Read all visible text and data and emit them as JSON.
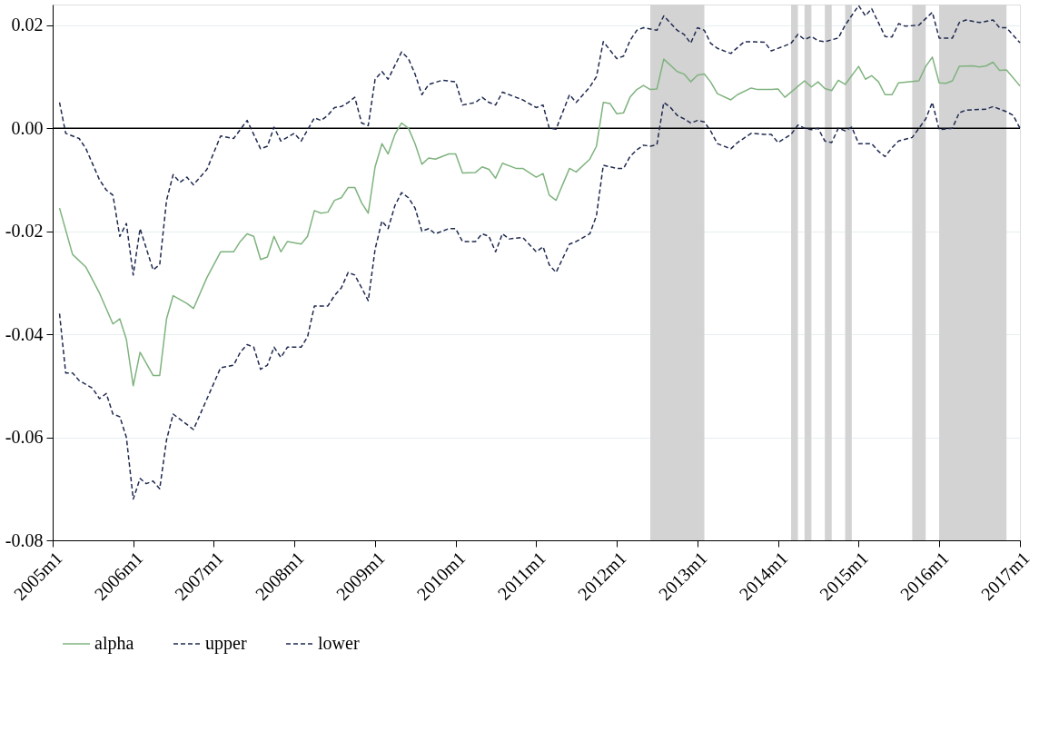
{
  "chart_data": {
    "type": "line",
    "xlim": [
      "2005-01",
      "2017-01"
    ],
    "xticks": [
      {
        "value": "2005-01",
        "label": "2005m1"
      },
      {
        "value": "2006-01",
        "label": "2006m1"
      },
      {
        "value": "2007-01",
        "label": "2007m1"
      },
      {
        "value": "2008-01",
        "label": "2008m1"
      },
      {
        "value": "2009-01",
        "label": "2009m1"
      },
      {
        "value": "2010-01",
        "label": "2010m1"
      },
      {
        "value": "2011-01",
        "label": "2011m1"
      },
      {
        "value": "2012-01",
        "label": "2012m1"
      },
      {
        "value": "2013-01",
        "label": "2013m1"
      },
      {
        "value": "2014-01",
        "label": "2014m1"
      },
      {
        "value": "2015-01",
        "label": "2015m1"
      },
      {
        "value": "2016-01",
        "label": "2016m1"
      },
      {
        "value": "2017-01",
        "label": "2017m1"
      }
    ],
    "ylim": [
      -0.08,
      0.024
    ],
    "yticks": [
      -0.08,
      -0.06,
      -0.04,
      -0.02,
      {
        "value": 0,
        "label": "0.00"
      },
      0.02
    ],
    "grid": "y",
    "legend": "bottom",
    "series": [
      {
        "name": "alpha",
        "color": "#7fb37e",
        "line_style": "solid",
        "x": [
          "2005-02",
          "2005-04",
          "2005-06",
          "2005-08",
          "2005-10",
          "2005-11",
          "2005-12",
          "2006-01",
          "2006-02",
          "2006-04",
          "2006-05",
          "2006-06",
          "2006-07",
          "2006-09",
          "2006-10",
          "2006-12",
          "2007-02",
          "2007-04",
          "2007-05",
          "2007-06",
          "2007-07",
          "2007-08",
          "2007-09",
          "2007-10",
          "2007-11",
          "2007-12",
          "2008-02",
          "2008-03",
          "2008-04",
          "2008-05",
          "2008-06",
          "2008-07",
          "2008-08",
          "2008-09",
          "2008-10",
          "2008-11",
          "2008-12",
          "2009-01",
          "2009-02",
          "2009-03",
          "2009-04",
          "2009-05",
          "2009-06",
          "2009-07",
          "2009-08",
          "2009-09",
          "2009-10",
          "2009-12",
          "2010-01",
          "2010-02",
          "2010-04",
          "2010-05",
          "2010-06",
          "2010-07",
          "2010-08",
          "2010-10",
          "2010-11",
          "2011-01",
          "2011-02",
          "2011-03",
          "2011-04",
          "2011-06",
          "2011-07",
          "2011-09",
          "2011-10",
          "2011-11",
          "2011-12",
          "2012-01",
          "2012-02",
          "2012-03",
          "2012-04",
          "2012-05",
          "2012-06",
          "2012-07",
          "2012-08",
          "2012-10",
          "2012-11",
          "2012-12",
          "2013-01",
          "2013-02",
          "2013-03",
          "2013-04",
          "2013-06",
          "2013-07",
          "2013-09",
          "2013-10",
          "2013-12",
          "2014-01",
          "2014-02",
          "2014-03",
          "2014-05",
          "2014-06",
          "2014-07",
          "2014-08",
          "2014-09",
          "2014-10",
          "2014-11",
          "2015-01",
          "2015-02",
          "2015-03",
          "2015-04",
          "2015-05",
          "2015-06",
          "2015-07",
          "2015-10",
          "2015-11",
          "2015-12",
          "2016-01",
          "2016-02",
          "2016-03",
          "2016-04",
          "2016-06",
          "2016-07",
          "2016-08",
          "2016-09",
          "2016-10",
          "2016-11",
          "2017-01"
        ],
        "values": [
          -0.0155,
          -0.0245,
          -0.027,
          -0.032,
          -0.038,
          -0.037,
          -0.041,
          -0.05,
          -0.0435,
          -0.048,
          -0.048,
          -0.037,
          -0.0325,
          -0.034,
          -0.035,
          -0.029,
          -0.024,
          -0.024,
          -0.022,
          -0.0205,
          -0.021,
          -0.0255,
          -0.025,
          -0.021,
          -0.024,
          -0.022,
          -0.0225,
          -0.021,
          -0.016,
          -0.0165,
          -0.0163,
          -0.014,
          -0.0135,
          -0.0115,
          -0.0115,
          -0.0145,
          -0.0165,
          -0.0075,
          -0.003,
          -0.005,
          -0.0012,
          0.001,
          0.0,
          -0.003,
          -0.007,
          -0.0058,
          -0.006,
          -0.005,
          -0.005,
          -0.0087,
          -0.0086,
          -0.0075,
          -0.008,
          -0.0097,
          -0.0068,
          -0.0078,
          -0.0078,
          -0.0095,
          -0.0088,
          -0.013,
          -0.014,
          -0.0078,
          -0.0085,
          -0.006,
          -0.0035,
          0.005,
          0.0048,
          0.0028,
          0.003,
          0.006,
          0.0075,
          0.0083,
          0.0075,
          0.0076,
          0.0134,
          0.011,
          0.0105,
          0.009,
          0.0103,
          0.0105,
          0.009,
          0.0067,
          0.0055,
          0.0065,
          0.0078,
          0.0075,
          0.0075,
          0.0076,
          0.006,
          0.007,
          0.0092,
          0.008,
          0.009,
          0.0077,
          0.0073,
          0.0093,
          0.0085,
          0.012,
          0.0095,
          0.0102,
          0.009,
          0.0065,
          0.0065,
          0.0088,
          0.0092,
          0.012,
          0.0138,
          0.0088,
          0.0087,
          0.0092,
          0.012,
          0.0121,
          0.0119,
          0.0121,
          0.0128,
          0.0112,
          0.0113,
          0.0082
        ]
      },
      {
        "name": "upper",
        "color": "#1f2a50",
        "line_style": "dashed",
        "x": [
          "2005-02",
          "2005-03",
          "2005-05",
          "2005-06",
          "2005-08",
          "2005-09",
          "2005-10",
          "2005-11",
          "2005-12",
          "2006-01",
          "2006-02",
          "2006-04",
          "2006-05",
          "2006-06",
          "2006-07",
          "2006-08",
          "2006-09",
          "2006-10",
          "2006-12",
          "2007-02",
          "2007-04",
          "2007-06",
          "2007-08",
          "2007-09",
          "2007-10",
          "2007-11",
          "2008-01",
          "2008-02",
          "2008-04",
          "2008-05",
          "2008-06",
          "2008-07",
          "2008-08",
          "2008-09",
          "2008-10",
          "2008-11",
          "2008-12",
          "2009-01",
          "2009-02",
          "2009-03",
          "2009-05",
          "2009-06",
          "2009-07",
          "2009-08",
          "2009-09",
          "2009-11",
          "2010-01",
          "2010-02",
          "2010-04",
          "2010-05",
          "2010-06",
          "2010-07",
          "2010-08",
          "2010-10",
          "2010-11",
          "2011-01",
          "2011-02",
          "2011-03",
          "2011-04",
          "2011-06",
          "2011-07",
          "2011-09",
          "2011-10",
          "2011-11",
          "2012-01",
          "2012-02",
          "2012-03",
          "2012-04",
          "2012-05",
          "2012-07",
          "2012-08",
          "2012-10",
          "2012-11",
          "2012-12",
          "2013-01",
          "2013-02",
          "2013-03",
          "2013-04",
          "2013-06",
          "2013-08",
          "2013-11",
          "2013-12",
          "2014-02",
          "2014-03",
          "2014-04",
          "2014-05",
          "2014-06",
          "2014-07",
          "2014-08",
          "2014-10",
          "2014-11",
          "2015-01",
          "2015-02",
          "2015-03",
          "2015-05",
          "2015-06",
          "2015-07",
          "2015-08",
          "2015-10",
          "2015-12",
          "2016-01",
          "2016-03",
          "2016-04",
          "2016-05",
          "2016-07",
          "2016-09",
          "2016-10",
          "2016-11",
          "2017-01"
        ],
        "values": [
          0.005,
          -0.001,
          -0.002,
          -0.004,
          -0.01,
          -0.012,
          -0.013,
          -0.021,
          -0.0185,
          -0.0285,
          -0.0195,
          -0.0275,
          -0.0265,
          -0.014,
          -0.009,
          -0.0105,
          -0.0095,
          -0.011,
          -0.008,
          -0.0015,
          -0.002,
          0.0015,
          -0.004,
          -0.0035,
          0.0002,
          -0.0025,
          -0.001,
          -0.0025,
          0.002,
          0.0015,
          0.0025,
          0.004,
          0.0042,
          0.005,
          0.006,
          0.001,
          0.0005,
          0.0095,
          0.011,
          0.0095,
          0.0148,
          0.0135,
          0.0105,
          0.0065,
          0.0085,
          0.0093,
          0.009,
          0.0045,
          0.005,
          0.006,
          0.005,
          0.0045,
          0.007,
          0.006,
          0.0055,
          0.004,
          0.0045,
          0.0,
          -0.0002,
          0.0065,
          0.005,
          0.008,
          0.01,
          0.0168,
          0.0135,
          0.014,
          0.017,
          0.019,
          0.0195,
          0.019,
          0.0218,
          0.019,
          0.0182,
          0.0165,
          0.0195,
          0.019,
          0.0165,
          0.0155,
          0.0145,
          0.0168,
          0.0167,
          0.015,
          0.016,
          0.0165,
          0.0182,
          0.0172,
          0.0178,
          0.017,
          0.0168,
          0.0175,
          0.02,
          0.0238,
          0.0218,
          0.0232,
          0.0178,
          0.0177,
          0.0203,
          0.0198,
          0.02,
          0.0225,
          0.0175,
          0.0175,
          0.0205,
          0.021,
          0.0205,
          0.021,
          0.0195,
          0.0195,
          0.0166
        ]
      },
      {
        "name": "lower",
        "color": "#1f2a50",
        "line_style": "dashed",
        "x": [
          "2005-02",
          "2005-03",
          "2005-04",
          "2005-05",
          "2005-07",
          "2005-08",
          "2005-09",
          "2005-10",
          "2005-11",
          "2005-12",
          "2006-01",
          "2006-02",
          "2006-03",
          "2006-04",
          "2006-05",
          "2006-06",
          "2006-07",
          "2006-08",
          "2006-10",
          "2007-02",
          "2007-04",
          "2007-05",
          "2007-06",
          "2007-07",
          "2007-08",
          "2007-09",
          "2007-10",
          "2007-11",
          "2007-12",
          "2008-02",
          "2008-03",
          "2008-04",
          "2008-06",
          "2008-07",
          "2008-08",
          "2008-09",
          "2008-10",
          "2008-11",
          "2008-12",
          "2009-01",
          "2009-02",
          "2009-03",
          "2009-04",
          "2009-05",
          "2009-06",
          "2009-07",
          "2009-08",
          "2009-09",
          "2009-10",
          "2009-12",
          "2010-01",
          "2010-02",
          "2010-04",
          "2010-05",
          "2010-06",
          "2010-07",
          "2010-08",
          "2010-09",
          "2010-11",
          "2011-01",
          "2011-02",
          "2011-03",
          "2011-04",
          "2011-06",
          "2011-07",
          "2011-09",
          "2011-10",
          "2011-11",
          "2012-01",
          "2012-02",
          "2012-03",
          "2012-04",
          "2012-05",
          "2012-06",
          "2012-07",
          "2012-08",
          "2012-09",
          "2012-10",
          "2012-11",
          "2012-12",
          "2013-01",
          "2013-02",
          "2013-03",
          "2013-04",
          "2013-06",
          "2013-07",
          "2013-09",
          "2013-11",
          "2013-12",
          "2014-01",
          "2014-03",
          "2014-04",
          "2014-05",
          "2014-06",
          "2014-07",
          "2014-08",
          "2014-09",
          "2014-10",
          "2014-11",
          "2014-12",
          "2015-01",
          "2015-03",
          "2015-04",
          "2015-05",
          "2015-06",
          "2015-07",
          "2015-09",
          "2015-11",
          "2015-12",
          "2016-01",
          "2016-03",
          "2016-04",
          "2016-05",
          "2016-08",
          "2016-09",
          "2016-11",
          "2016-12",
          "2017-01"
        ],
        "values": [
          -0.036,
          -0.0475,
          -0.0475,
          -0.049,
          -0.0505,
          -0.0525,
          -0.0515,
          -0.0555,
          -0.056,
          -0.06,
          -0.072,
          -0.068,
          -0.069,
          -0.0685,
          -0.07,
          -0.0605,
          -0.0555,
          -0.0565,
          -0.0585,
          -0.0465,
          -0.046,
          -0.0435,
          -0.042,
          -0.0425,
          -0.0468,
          -0.046,
          -0.0425,
          -0.0445,
          -0.0425,
          -0.0425,
          -0.0405,
          -0.0345,
          -0.0345,
          -0.0325,
          -0.031,
          -0.028,
          -0.0285,
          -0.031,
          -0.0335,
          -0.0235,
          -0.018,
          -0.0195,
          -0.015,
          -0.0125,
          -0.0135,
          -0.0155,
          -0.02,
          -0.0195,
          -0.0205,
          -0.0195,
          -0.0195,
          -0.022,
          -0.022,
          -0.0205,
          -0.021,
          -0.024,
          -0.0205,
          -0.0215,
          -0.0212,
          -0.024,
          -0.023,
          -0.0265,
          -0.028,
          -0.0225,
          -0.022,
          -0.0205,
          -0.017,
          -0.0072,
          -0.0078,
          -0.0078,
          -0.0055,
          -0.0042,
          -0.0033,
          -0.0035,
          -0.0032,
          0.005,
          0.004,
          0.0025,
          0.0018,
          0.001,
          0.0015,
          0.0012,
          -0.0005,
          -0.003,
          -0.004,
          -0.0028,
          -0.001,
          -0.0012,
          -0.0012,
          -0.0028,
          -0.0012,
          0.0006,
          0.0,
          -0.0003,
          0.0,
          -0.0025,
          -0.0028,
          0.0,
          -0.0005,
          0.0002,
          -0.003,
          -0.003,
          -0.0045,
          -0.0055,
          -0.0038,
          -0.0025,
          -0.0018,
          0.0018,
          0.005,
          -0.0003,
          0.0,
          0.003,
          0.0035,
          0.0037,
          0.0042,
          0.0032,
          0.0025,
          0.0
        ]
      }
    ],
    "ref_lines": [
      {
        "axis": "y",
        "value": 0,
        "color": "#000000",
        "line_style": "solid"
      }
    ],
    "bands": [
      {
        "axis": "x",
        "from": "2012-06",
        "to": "2013-02",
        "color": "#d3d3d3"
      },
      {
        "axis": "x",
        "from": "2014-03",
        "to": "2014-04",
        "color": "#d3d3d3"
      },
      {
        "axis": "x",
        "from": "2014-05",
        "to": "2014-06",
        "color": "#d3d3d3"
      },
      {
        "axis": "x",
        "from": "2014-08",
        "to": "2014-09",
        "color": "#d3d3d3"
      },
      {
        "axis": "x",
        "from": "2014-11",
        "to": "2014-12",
        "color": "#d3d3d3"
      },
      {
        "axis": "x",
        "from": "2015-09",
        "to": "2015-11",
        "color": "#d3d3d3"
      },
      {
        "axis": "x",
        "from": "2016-01",
        "to": "2016-11",
        "color": "#d3d3d3"
      }
    ]
  }
}
